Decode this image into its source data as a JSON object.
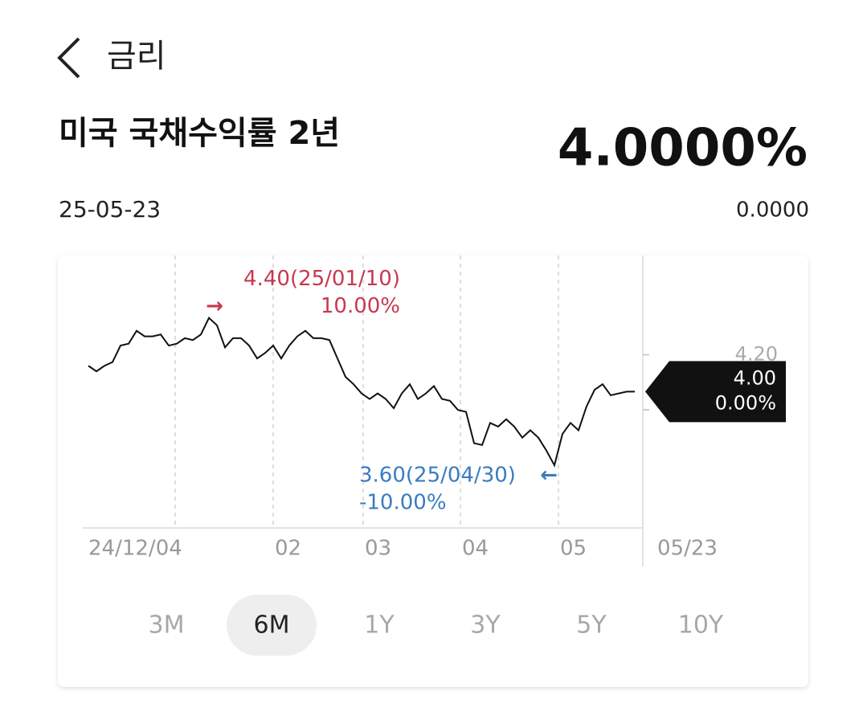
{
  "header": {
    "title": "금리"
  },
  "instrument": {
    "name": "미국 국채수익률 2년",
    "price": "4.0000%",
    "date": "25-05-23",
    "change": "0.0000"
  },
  "chart_data": {
    "type": "line",
    "color": "#111111",
    "values": [
      4.14,
      4.11,
      4.14,
      4.16,
      4.25,
      4.26,
      4.33,
      4.3,
      4.3,
      4.31,
      4.25,
      4.26,
      4.29,
      4.28,
      4.31,
      4.4,
      4.36,
      4.24,
      4.29,
      4.29,
      4.25,
      4.18,
      4.21,
      4.25,
      4.18,
      4.25,
      4.3,
      4.33,
      4.29,
      4.29,
      4.28,
      4.18,
      4.08,
      4.04,
      3.99,
      3.96,
      3.99,
      3.96,
      3.91,
      3.99,
      4.04,
      3.96,
      3.99,
      4.03,
      3.96,
      3.95,
      3.9,
      3.89,
      3.72,
      3.71,
      3.83,
      3.81,
      3.85,
      3.81,
      3.75,
      3.79,
      3.75,
      3.68,
      3.6,
      3.77,
      3.83,
      3.79,
      3.92,
      4.01,
      4.04,
      3.98,
      3.99,
      4.0,
      4.0
    ],
    "xlim": [
      0,
      68
    ],
    "xticks": [
      {
        "value": 0,
        "label": "24/12/04"
      },
      {
        "value": 23,
        "label": "02"
      },
      {
        "value": 34.2,
        "label": "03"
      },
      {
        "value": 46.3,
        "label": "04"
      },
      {
        "value": 58.5,
        "label": "05"
      }
    ],
    "ylim": [
      3.26,
      4.73
    ],
    "yticks": [
      {
        "value": 4.2,
        "label": "4.20"
      }
    ],
    "grid": true,
    "last_date": "05/23",
    "max_annotation": {
      "text": "4.40(25/01/10)",
      "change": "10.00%",
      "arrow": "→",
      "color": "#c8384f"
    },
    "min_annotation": {
      "text": "3.60(25/04/30)",
      "change": "-10.00%",
      "arrow": "←",
      "color": "#3a7cc0"
    },
    "current_tag": {
      "value": "4.00",
      "change": "0.00%"
    }
  },
  "periods": {
    "options": [
      "3M",
      "6M",
      "1Y",
      "3Y",
      "5Y",
      "10Y"
    ],
    "selected": 1
  }
}
